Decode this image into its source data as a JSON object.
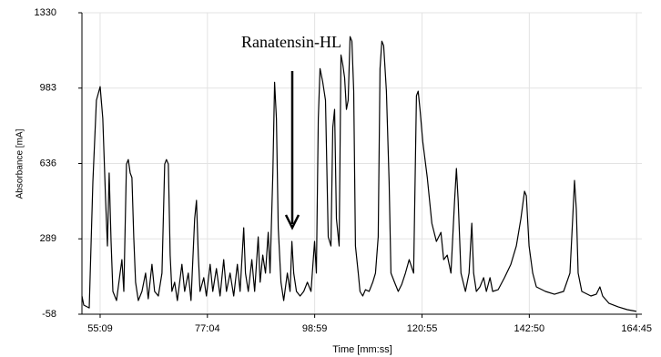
{
  "chart_data": {
    "type": "line",
    "annotation": "Ranatensin-HL",
    "xlabel": "Time [mm:ss]",
    "ylabel": "Absorbance [mA]",
    "grid": true,
    "xlim": [
      3086,
      9950
    ],
    "ylim": [
      -58,
      1330
    ],
    "xticks": [
      {
        "value": 3309,
        "label": "55:09"
      },
      {
        "value": 4624,
        "label": "77:04"
      },
      {
        "value": 5939,
        "label": "98:59"
      },
      {
        "value": 7255,
        "label": "120:55"
      },
      {
        "value": 8570,
        "label": "142:50"
      },
      {
        "value": 9885,
        "label": "164:45"
      }
    ],
    "yticks": [
      -58,
      289,
      636,
      983,
      1330
    ],
    "x": [
      3086,
      3108,
      3175,
      3220,
      3264,
      3309,
      3342,
      3376,
      3398,
      3420,
      3443,
      3465,
      3510,
      3554,
      3576,
      3599,
      3632,
      3654,
      3677,
      3699,
      3721,
      3743,
      3777,
      3821,
      3866,
      3899,
      3944,
      3977,
      4022,
      4067,
      4100,
      4122,
      4145,
      4167,
      4189,
      4222,
      4256,
      4312,
      4345,
      4390,
      4423,
      4468,
      4490,
      4512,
      4534,
      4579,
      4612,
      4657,
      4690,
      4735,
      4779,
      4824,
      4857,
      4902,
      4947,
      4991,
      5025,
      5069,
      5091,
      5125,
      5169,
      5203,
      5247,
      5270,
      5303,
      5336,
      5370,
      5392,
      5426,
      5448,
      5470,
      5492,
      5526,
      5559,
      5604,
      5637,
      5660,
      5682,
      5715,
      5760,
      5805,
      5849,
      5894,
      5938,
      5960,
      5983,
      6005,
      6038,
      6072,
      6105,
      6139,
      6161,
      6183,
      6205,
      6239,
      6261,
      6283,
      6306,
      6328,
      6350,
      6373,
      6395,
      6417,
      6439,
      6473,
      6495,
      6528,
      6562,
      6606,
      6651,
      6684,
      6718,
      6740,
      6762,
      6785,
      6818,
      6852,
      6874,
      6918,
      6963,
      7007,
      7052,
      7097,
      7152,
      7186,
      7208,
      7230,
      7264,
      7319,
      7375,
      7431,
      7487,
      7520,
      7564,
      7609,
      7654,
      7676,
      7698,
      7732,
      7787,
      7832,
      7865,
      7888,
      7921,
      7965,
      8010,
      8044,
      8088,
      8121,
      8188,
      8266,
      8344,
      8411,
      8467,
      8511,
      8534,
      8567,
      8612,
      8656,
      8768,
      8879,
      8990,
      9068,
      9102,
      9124,
      9146,
      9169,
      9213,
      9325,
      9391,
      9436,
      9469,
      9547,
      9659,
      9770,
      9882
    ],
    "series": [
      {
        "color": "#000000",
        "values": [
          26,
          -16,
          -29,
          550,
          927,
          990,
          843,
          466,
          256,
          592,
          277,
          47,
          5,
          131,
          193,
          47,
          633,
          654,
          592,
          571,
          298,
          89,
          5,
          47,
          131,
          13,
          172,
          47,
          26,
          131,
          633,
          654,
          633,
          214,
          47,
          89,
          5,
          172,
          47,
          131,
          5,
          382,
          466,
          214,
          47,
          110,
          26,
          172,
          47,
          152,
          26,
          193,
          47,
          131,
          26,
          172,
          47,
          340,
          131,
          47,
          193,
          47,
          298,
          89,
          214,
          131,
          319,
          131,
          592,
          1010,
          843,
          340,
          89,
          5,
          131,
          47,
          277,
          131,
          47,
          26,
          47,
          89,
          47,
          277,
          131,
          843,
          1073,
          1010,
          927,
          298,
          256,
          801,
          885,
          382,
          256,
          1136,
          1094,
          1031,
          885,
          927,
          1220,
          1199,
          969,
          256,
          131,
          47,
          26,
          55,
          47,
          89,
          131,
          298,
          1073,
          1199,
          1178,
          969,
          550,
          131,
          89,
          47,
          80,
          131,
          193,
          131,
          948,
          969,
          885,
          738,
          571,
          361,
          277,
          319,
          193,
          214,
          131,
          466,
          613,
          466,
          131,
          47,
          131,
          361,
          131,
          47,
          68,
          110,
          47,
          110,
          47,
          55,
          110,
          172,
          256,
          382,
          508,
          487,
          256,
          131,
          68,
          47,
          34,
          47,
          131,
          382,
          558,
          424,
          131,
          47,
          26,
          34,
          68,
          26,
          -8,
          -24,
          -37,
          -45
        ]
      }
    ]
  }
}
